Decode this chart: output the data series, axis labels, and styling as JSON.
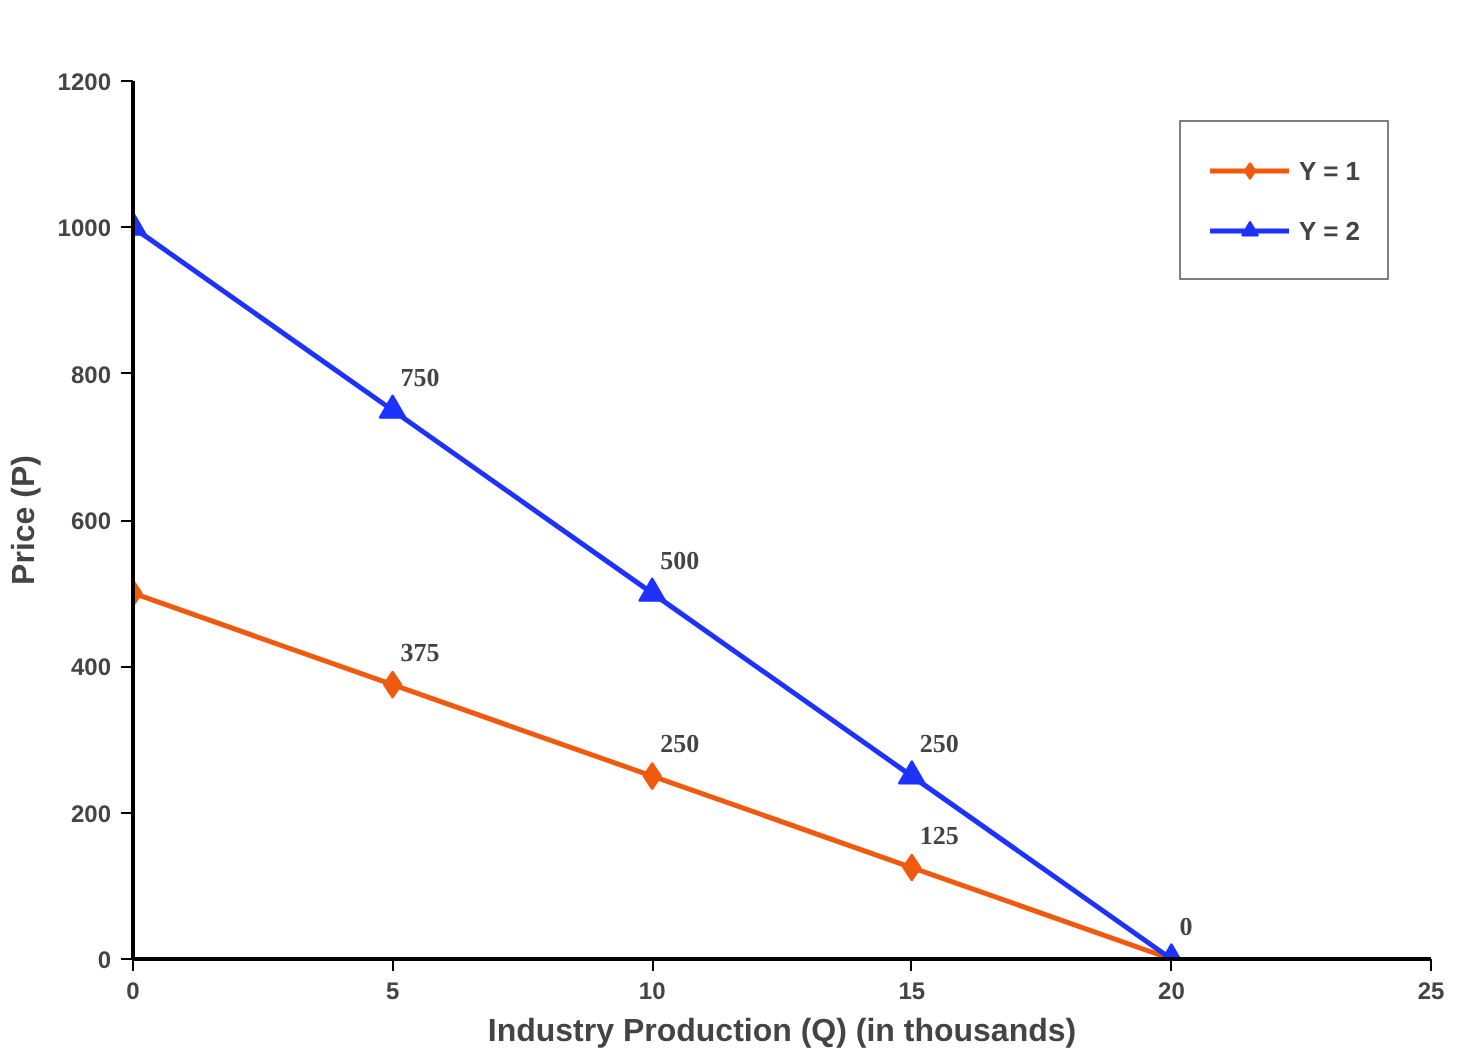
{
  "chart_data": {
    "type": "line",
    "xlabel": "Industry Production (Q) (in thousands)",
    "ylabel": "Price (P)",
    "x": [
      0,
      5,
      10,
      15,
      20
    ],
    "series": [
      {
        "name": "Y = 1",
        "color": "#f05a0f",
        "marker": "diamond",
        "values": [
          500,
          375,
          250,
          125,
          0
        ],
        "value_labels": [
          null,
          "375",
          "250",
          "125",
          null
        ]
      },
      {
        "name": "Y = 2",
        "color": "#1e32ff",
        "marker": "triangle",
        "values": [
          1000,
          750,
          500,
          250,
          0
        ],
        "value_labels": [
          null,
          "750",
          "500",
          "250",
          "0"
        ]
      }
    ],
    "xlim": [
      0,
      25
    ],
    "xticks": [
      0,
      5,
      10,
      15,
      20,
      25
    ],
    "ylim": [
      0,
      1200
    ],
    "yticks": [
      0,
      200,
      400,
      600,
      800,
      1000,
      1200
    ],
    "grid": false,
    "legend": "top right",
    "line_style": "solid"
  }
}
